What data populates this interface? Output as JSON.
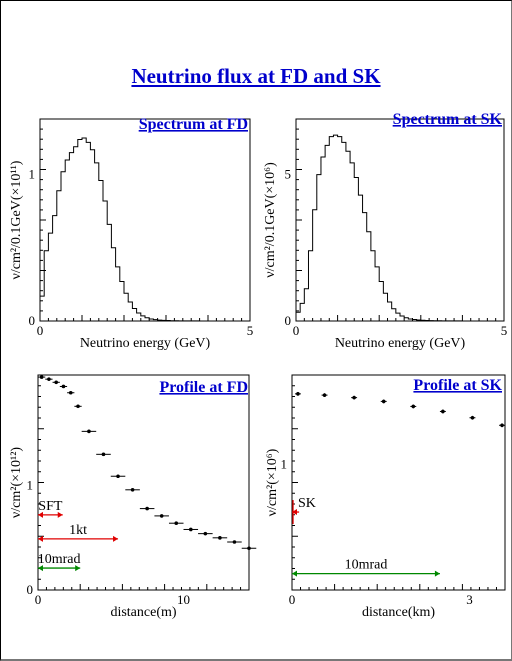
{
  "page": {
    "title": "Neutrino flux at FD and SK"
  },
  "chart_data": [
    {
      "id": "spec-fd",
      "type": "line",
      "title": "Spectrum at FD",
      "xlabel": "Neutrino energy (GeV)",
      "ylabel": "ν/cm²/0.1GeV(×10¹¹)",
      "xlim": [
        0,
        5
      ],
      "ylim": [
        0,
        1.38
      ],
      "xticks": [
        {
          "v": 0,
          "label": "0"
        },
        {
          "v": 5,
          "label": "5"
        }
      ],
      "yticks": [
        {
          "v": 0,
          "label": "0"
        },
        {
          "v": 1,
          "label": "1"
        }
      ],
      "step": 0.1,
      "values": [
        0.17,
        0.48,
        0.6,
        0.72,
        0.89,
        1.02,
        1.1,
        1.15,
        1.19,
        1.24,
        1.25,
        1.22,
        1.17,
        1.08,
        0.96,
        0.82,
        0.66,
        0.5,
        0.37,
        0.27,
        0.19,
        0.13,
        0.085,
        0.055,
        0.035,
        0.022,
        0.014,
        0.009,
        0.006,
        0.004,
        0.003,
        0.002,
        0.0015,
        0.001,
        0.001,
        0.0008,
        0.0006,
        0.0005,
        0.0004,
        0.0003,
        0.0003,
        0.0002,
        0.0002,
        0.0002,
        0.0001,
        0.0001,
        0.0001,
        0.0001,
        0.0001,
        0.0001
      ]
    },
    {
      "id": "spec-sk",
      "type": "line",
      "title": "Spectrum at SK",
      "xlabel": "Neutrino energy (GeV)",
      "ylabel": "ν/cm²/0.1GeV(×10⁶)",
      "xlim": [
        0,
        5
      ],
      "ylim": [
        0,
        6.9
      ],
      "xticks": [
        {
          "v": 0,
          "label": "0"
        },
        {
          "v": 5,
          "label": "5"
        }
      ],
      "yticks": [
        {
          "v": 0,
          "label": "0"
        },
        {
          "v": 5,
          "label": "5"
        }
      ],
      "step": 0.1,
      "values": [
        0.3,
        0.6,
        1.1,
        2.4,
        3.8,
        5.0,
        5.6,
        6.0,
        6.3,
        6.35,
        6.3,
        6.1,
        5.8,
        5.4,
        4.9,
        4.3,
        3.7,
        3.05,
        2.4,
        1.85,
        1.35,
        0.95,
        0.65,
        0.42,
        0.27,
        0.17,
        0.11,
        0.07,
        0.05,
        0.035,
        0.025,
        0.018,
        0.013,
        0.01,
        0.008,
        0.006,
        0.005,
        0.004,
        0.003,
        0.003,
        0.002,
        0.002,
        0.002,
        0.001,
        0.001,
        0.001,
        0.001,
        0.001,
        0.001,
        0.001
      ]
    },
    {
      "id": "prof-fd",
      "type": "scatter",
      "title": "Profile at FD",
      "xlabel": "distance(m)",
      "ylabel": "ν/cm²(×10¹²)",
      "xlim": [
        0,
        14.5
      ],
      "ylim": [
        0,
        2.06
      ],
      "xticks": [
        {
          "v": 0,
          "label": "0"
        },
        {
          "v": 10,
          "label": "10"
        }
      ],
      "yticks": [
        {
          "v": 0,
          "label": "0"
        },
        {
          "v": 1,
          "label": "1"
        }
      ],
      "x": [
        0.25,
        0.75,
        1.25,
        1.75,
        2.25,
        2.75,
        3.5,
        4.5,
        5.5,
        6.5,
        7.5,
        8.5,
        9.5,
        10.5,
        11.5,
        12.5,
        13.5,
        14.5
      ],
      "y": [
        2.04,
        2.02,
        1.99,
        1.95,
        1.89,
        1.76,
        1.52,
        1.3,
        1.09,
        0.96,
        0.78,
        0.71,
        0.64,
        0.58,
        0.54,
        0.5,
        0.46,
        0.4
      ],
      "xerr": [
        0.25,
        0.25,
        0.25,
        0.25,
        0.25,
        0.25,
        0.5,
        0.5,
        0.5,
        0.5,
        0.5,
        0.5,
        0.5,
        0.5,
        0.5,
        0.5,
        0.5,
        0.5
      ],
      "annotations": [
        {
          "label": "SFT",
          "y": 0.72,
          "x0": 0,
          "x1": 1.7,
          "color": "#e00000"
        },
        {
          "label": "1kt",
          "y": 0.49,
          "x0": 0,
          "x1": 5.5,
          "color": "#e00000"
        },
        {
          "label": "10mrad",
          "y": 0.21,
          "x0": 0,
          "x1": 2.9,
          "color": "#008800"
        }
      ]
    },
    {
      "id": "prof-sk",
      "type": "scatter",
      "title": "Profile at SK",
      "xlabel": "distance(km)",
      "ylabel": "ν/cm²(×10⁶)",
      "xlim": [
        0,
        3.6
      ],
      "ylim": [
        0,
        1.71
      ],
      "xticks": [
        {
          "v": 0,
          "label": "0"
        },
        {
          "v": 3,
          "label": "3"
        }
      ],
      "yticks": [
        {
          "v": 1,
          "label": "1"
        }
      ],
      "x": [
        0.1,
        0.55,
        1.05,
        1.55,
        2.05,
        2.55,
        3.05,
        3.55
      ],
      "y": [
        1.56,
        1.55,
        1.53,
        1.5,
        1.46,
        1.42,
        1.37,
        1.31
      ],
      "xerr": [
        0.05,
        0.05,
        0.05,
        0.05,
        0.05,
        0.05,
        0.05,
        0.05
      ],
      "yerr": [
        0.015,
        0.015,
        0.015,
        0.015,
        0.015,
        0.015,
        0.015,
        0.015
      ],
      "annotations": [
        {
          "label": "SK",
          "y": 0.62,
          "x0": 0,
          "x1": 0.12,
          "color": "#e00000",
          "arrow": "left-only"
        },
        {
          "label": "10mrad",
          "y": 0.13,
          "x0": 0,
          "x1": 2.5,
          "color": "#008800"
        }
      ]
    }
  ]
}
